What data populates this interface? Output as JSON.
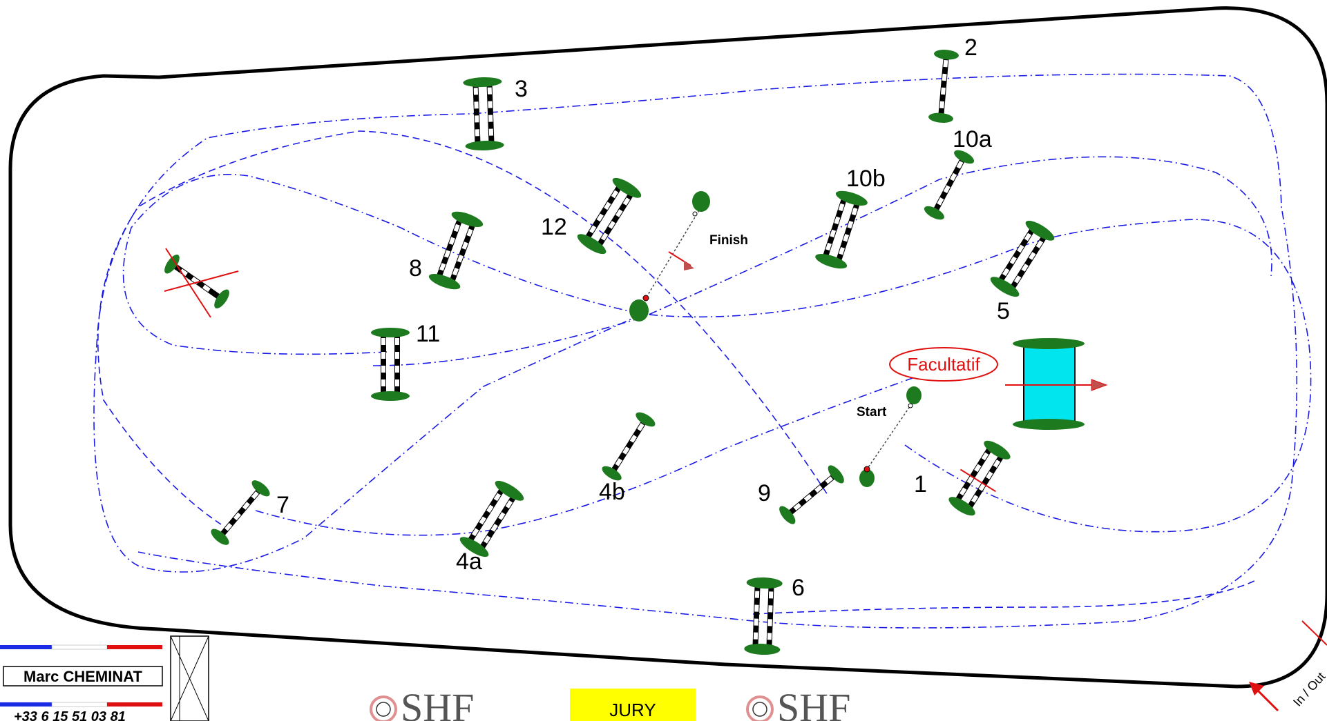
{
  "fence_numbers": [
    "1",
    "2",
    "3",
    "4a",
    "4b",
    "5",
    "6",
    "7",
    "8",
    "9",
    "10a",
    "10b",
    "11",
    "12"
  ],
  "labels": {
    "start": "Start",
    "finish": "Finish",
    "facultatif": "Facultatif",
    "in_out": "In / Out",
    "jury": "JURY"
  },
  "designer": {
    "name": "Marc CHEMINAT",
    "phone": "+33 6 15 51 03 81"
  },
  "logos": [
    "SHF",
    "SHF"
  ],
  "colors": {
    "track": "#1a1ae6",
    "arrow": "#e01010",
    "foliage": "#1e7a1e",
    "water": "#00e5ee",
    "jury_box": "#ffff00",
    "flag_red": "#e01010",
    "flag_blue": "#1a2be6"
  }
}
